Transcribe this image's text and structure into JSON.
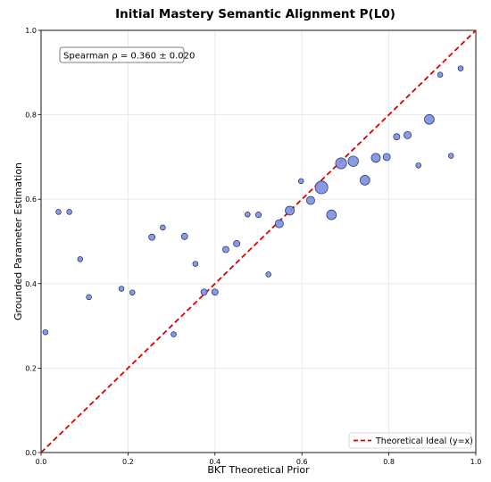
{
  "chart_data": {
    "type": "scatter",
    "title": "Initial Mastery Semantic Alignment P(L0)",
    "xlabel": "BKT Theoretical Prior",
    "ylabel": "Grounded Parameter Estimation",
    "xlim": [
      0,
      1
    ],
    "ylim": [
      0,
      1
    ],
    "x_ticks": [
      "0.0",
      "0.2",
      "0.4",
      "0.6",
      "0.8",
      "1.0"
    ],
    "y_ticks": [
      "0.0",
      "0.2",
      "0.4",
      "0.6",
      "0.8",
      "1.0"
    ],
    "grid": true,
    "annotation": "Spearman ρ = 0.360 ± 0.020",
    "legend": {
      "label": "Theoretical Ideal (y=x)",
      "placement": "bottom-right"
    },
    "ideal_line": {
      "from": [
        0,
        0
      ],
      "to": [
        1,
        1
      ],
      "color": "#dd0000",
      "style": "dashed"
    },
    "marker_color": "#7b8fe0",
    "marker_edge_color": "#1f2a66",
    "points": [
      {
        "x": 0.01,
        "y": 0.285,
        "size": 1
      },
      {
        "x": 0.04,
        "y": 0.57,
        "size": 1
      },
      {
        "x": 0.065,
        "y": 0.57,
        "size": 1
      },
      {
        "x": 0.09,
        "y": 0.458,
        "size": 1
      },
      {
        "x": 0.11,
        "y": 0.368,
        "size": 1
      },
      {
        "x": 0.185,
        "y": 0.388,
        "size": 1
      },
      {
        "x": 0.21,
        "y": 0.379,
        "size": 1
      },
      {
        "x": 0.255,
        "y": 0.51,
        "size": 1.5
      },
      {
        "x": 0.28,
        "y": 0.533,
        "size": 1
      },
      {
        "x": 0.305,
        "y": 0.28,
        "size": 1
      },
      {
        "x": 0.33,
        "y": 0.512,
        "size": 1.5
      },
      {
        "x": 0.355,
        "y": 0.447,
        "size": 1
      },
      {
        "x": 0.375,
        "y": 0.38,
        "size": 1.5
      },
      {
        "x": 0.4,
        "y": 0.38,
        "size": 1.5
      },
      {
        "x": 0.425,
        "y": 0.481,
        "size": 1.5
      },
      {
        "x": 0.45,
        "y": 0.495,
        "size": 1.5
      },
      {
        "x": 0.475,
        "y": 0.564,
        "size": 1
      },
      {
        "x": 0.5,
        "y": 0.563,
        "size": 1.2
      },
      {
        "x": 0.523,
        "y": 0.422,
        "size": 1
      },
      {
        "x": 0.548,
        "y": 0.542,
        "size": 2.5
      },
      {
        "x": 0.572,
        "y": 0.573,
        "size": 3
      },
      {
        "x": 0.598,
        "y": 0.643,
        "size": 1
      },
      {
        "x": 0.62,
        "y": 0.597,
        "size": 2.5
      },
      {
        "x": 0.645,
        "y": 0.628,
        "size": 6
      },
      {
        "x": 0.668,
        "y": 0.563,
        "size": 3.5
      },
      {
        "x": 0.69,
        "y": 0.685,
        "size": 4.5
      },
      {
        "x": 0.718,
        "y": 0.69,
        "size": 4
      },
      {
        "x": 0.745,
        "y": 0.645,
        "size": 3.5
      },
      {
        "x": 0.77,
        "y": 0.698,
        "size": 3
      },
      {
        "x": 0.795,
        "y": 0.7,
        "size": 2
      },
      {
        "x": 0.818,
        "y": 0.748,
        "size": 1.5
      },
      {
        "x": 0.843,
        "y": 0.752,
        "size": 2
      },
      {
        "x": 0.868,
        "y": 0.68,
        "size": 1
      },
      {
        "x": 0.893,
        "y": 0.789,
        "size": 3.5
      },
      {
        "x": 0.918,
        "y": 0.895,
        "size": 1
      },
      {
        "x": 0.943,
        "y": 0.703,
        "size": 1
      },
      {
        "x": 0.965,
        "y": 0.91,
        "size": 1
      }
    ]
  }
}
